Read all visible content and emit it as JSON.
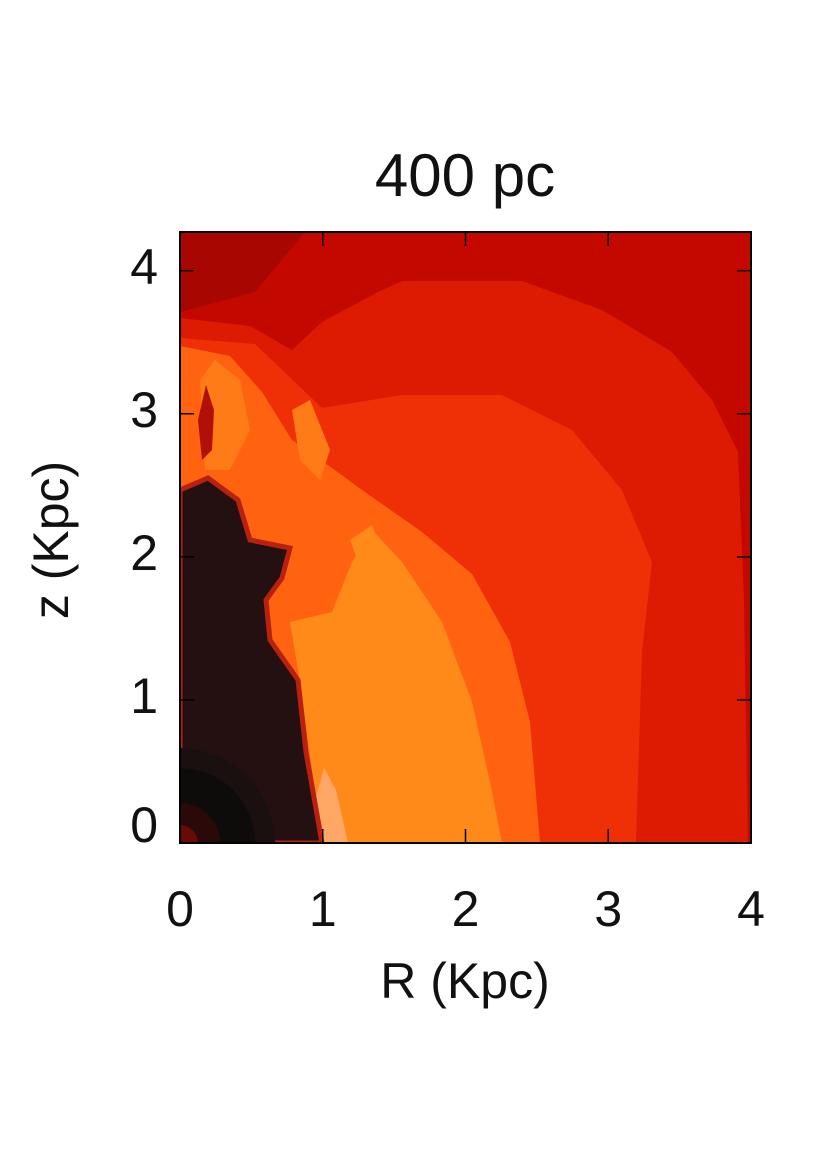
{
  "chart_data": {
    "type": "contour",
    "title": "400 pc",
    "x_label": "R (Kpc)",
    "y_label": "z (Kpc)",
    "xlim": [
      0,
      4
    ],
    "xticks": [
      0,
      1,
      2,
      3,
      4
    ],
    "ylim": [
      0,
      4.27
    ],
    "yticks": [
      0,
      1,
      2,
      3,
      4
    ]
  }
}
